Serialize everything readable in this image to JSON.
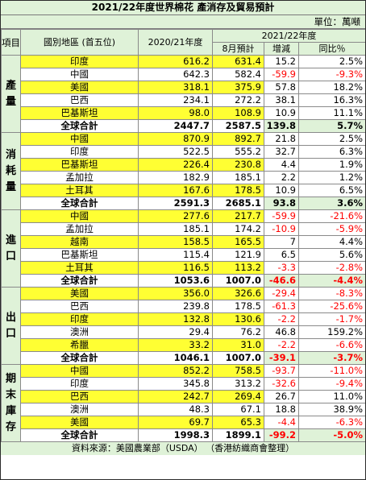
{
  "title": "2021/22年度世界棉花  產消存及貿易預計",
  "unit_label": "單位：萬噸",
  "header": {
    "category": "項目",
    "region": "國別地區 (首五位)",
    "col_2020": "2020/21年度",
    "col_2021": "2021/22年度",
    "col_aug": "8月預計",
    "col_change": "增減",
    "col_yoy": "同比％"
  },
  "sections": [
    {
      "category": "產量",
      "rows": [
        {
          "region": "印度",
          "v2020": "616.2",
          "v2021": "631.4",
          "change": "15.2",
          "yoy": "2.5%",
          "highlight": true
        },
        {
          "region": "中國",
          "v2020": "642.3",
          "v2021": "582.4",
          "change": "-59.9",
          "yoy": "-9.3%",
          "highlight": false
        },
        {
          "region": "美國",
          "v2020": "318.1",
          "v2021": "375.9",
          "change": "57.8",
          "yoy": "18.2%",
          "highlight": true
        },
        {
          "region": "巴西",
          "v2020": "234.1",
          "v2021": "272.2",
          "change": "38.1",
          "yoy": "16.3%",
          "highlight": false
        },
        {
          "region": "巴基斯坦",
          "v2020": "98.0",
          "v2021": "108.9",
          "change": "10.9",
          "yoy": "11.1%",
          "highlight": true
        }
      ],
      "total": {
        "region": "全球合計",
        "v2020": "2447.7",
        "v2021": "2587.5",
        "change": "139.8",
        "yoy": "5.7%"
      }
    },
    {
      "category": "消耗量",
      "rows": [
        {
          "region": "中國",
          "v2020": "870.9",
          "v2021": "892.7",
          "change": "21.8",
          "yoy": "2.5%",
          "highlight": true
        },
        {
          "region": "印度",
          "v2020": "522.5",
          "v2021": "555.2",
          "change": "32.7",
          "yoy": "6.3%",
          "highlight": false
        },
        {
          "region": "巴基斯坦",
          "v2020": "226.4",
          "v2021": "230.8",
          "change": "4.4",
          "yoy": "1.9%",
          "highlight": true
        },
        {
          "region": "孟加拉",
          "v2020": "182.9",
          "v2021": "185.1",
          "change": "2.2",
          "yoy": "1.2%",
          "highlight": false
        },
        {
          "region": "土耳其",
          "v2020": "167.6",
          "v2021": "178.5",
          "change": "10.9",
          "yoy": "6.5%",
          "highlight": true
        }
      ],
      "total": {
        "region": "全球合計",
        "v2020": "2591.3",
        "v2021": "2685.1",
        "change": "93.8",
        "yoy": "3.6%"
      }
    },
    {
      "category": "進口",
      "rows": [
        {
          "region": "中國",
          "v2020": "277.6",
          "v2021": "217.7",
          "change": "-59.9",
          "yoy": "-21.6%",
          "highlight": true
        },
        {
          "region": "孟加拉",
          "v2020": "185.1",
          "v2021": "174.2",
          "change": "-10.9",
          "yoy": "-5.9%",
          "highlight": false
        },
        {
          "region": "越南",
          "v2020": "158.5",
          "v2021": "165.5",
          "change": "7",
          "yoy": "4.4%",
          "highlight": true
        },
        {
          "region": "巴基斯坦",
          "v2020": "115.4",
          "v2021": "121.9",
          "change": "6.5",
          "yoy": "5.6%",
          "highlight": false
        },
        {
          "region": "土耳其",
          "v2020": "116.5",
          "v2021": "113.2",
          "change": "-3.3",
          "yoy": "-2.8%",
          "highlight": true
        }
      ],
      "total": {
        "region": "全球合計",
        "v2020": "1053.6",
        "v2021": "1007.0",
        "change": "-46.6",
        "yoy": "-4.4%"
      }
    },
    {
      "category": "出口",
      "rows": [
        {
          "region": "美國",
          "v2020": "356.0",
          "v2021": "326.6",
          "change": "-29.4",
          "yoy": "-8.3%",
          "highlight": true
        },
        {
          "region": "巴西",
          "v2020": "239.8",
          "v2021": "178.5",
          "change": "-61.3",
          "yoy": "-25.6%",
          "highlight": false
        },
        {
          "region": "印度",
          "v2020": "132.8",
          "v2021": "130.6",
          "change": "-2.2",
          "yoy": "-1.7%",
          "highlight": true
        },
        {
          "region": "澳洲",
          "v2020": "29.4",
          "v2021": "76.2",
          "change": "46.8",
          "yoy": "159.2%",
          "highlight": false
        },
        {
          "region": "希臘",
          "v2020": "33.2",
          "v2021": "31.0",
          "change": "-2.2",
          "yoy": "-6.6%",
          "highlight": true
        }
      ],
      "total": {
        "region": "全球合計",
        "v2020": "1046.1",
        "v2021": "1007.0",
        "change": "-39.1",
        "yoy": "-3.7%"
      }
    },
    {
      "category": "期末庫存",
      "rows": [
        {
          "region": "中國",
          "v2020": "852.2",
          "v2021": "758.5",
          "change": "-93.7",
          "yoy": "-11.0%",
          "highlight": true
        },
        {
          "region": "印度",
          "v2020": "345.8",
          "v2021": "313.2",
          "change": "-32.6",
          "yoy": "-9.4%",
          "highlight": false
        },
        {
          "region": "巴西",
          "v2020": "242.7",
          "v2021": "269.4",
          "change": "26.7",
          "yoy": "11.0%",
          "highlight": true
        },
        {
          "region": "澳洲",
          "v2020": "48.3",
          "v2021": "67.1",
          "change": "18.8",
          "yoy": "38.9%",
          "highlight": false
        },
        {
          "region": "美國",
          "v2020": "69.7",
          "v2021": "65.3",
          "change": "-4.4",
          "yoy": "-6.3%",
          "highlight": true
        }
      ],
      "total": {
        "region": "全球合計",
        "v2020": "1998.3",
        "v2021": "1899.1",
        "change": "-99.2",
        "yoy": "-5.0%"
      }
    }
  ],
  "source": "資料來源：美國農業部（USDA） （香港紡織商會整理）",
  "colors": {
    "highlight_yellow": "#ffff33",
    "header_green": "#dff2d8",
    "negative_red": "#ff0000"
  }
}
